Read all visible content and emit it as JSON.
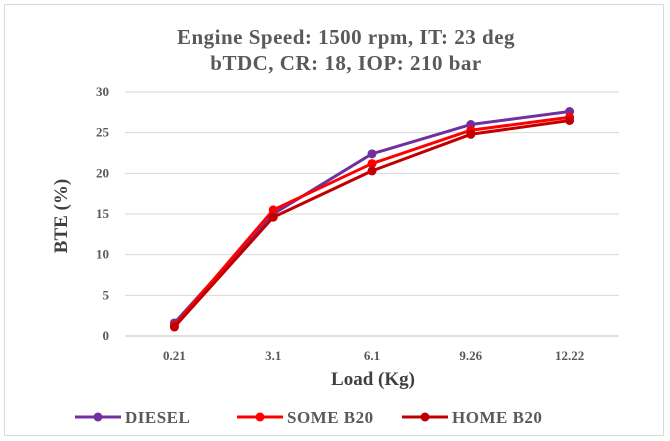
{
  "chart_data": {
    "type": "line",
    "title_lines": [
      "Engine Speed: 1500 rpm, IT: 23 deg",
      "bTDC, CR: 18, IOP: 210 bar"
    ],
    "xlabel": "Load (Kg)",
    "ylabel": "BTE (%)",
    "categories": [
      "0.21",
      "3.1",
      "6.1",
      "9.26",
      "12.22"
    ],
    "ylim": [
      0,
      30
    ],
    "yticks": [
      0,
      5,
      10,
      15,
      20,
      25,
      30
    ],
    "grid": true,
    "legend_position": "bottom",
    "series": [
      {
        "name": "DIESEL",
        "color": "#7030a0",
        "values": [
          1.6,
          15.0,
          22.4,
          26.0,
          27.6
        ]
      },
      {
        "name": "SOME B20",
        "color": "#ff0000",
        "values": [
          1.3,
          15.5,
          21.2,
          25.3,
          26.9
        ]
      },
      {
        "name": "HOME B20",
        "color": "#c00000",
        "values": [
          1.1,
          14.6,
          20.3,
          24.8,
          26.5
        ]
      }
    ]
  }
}
